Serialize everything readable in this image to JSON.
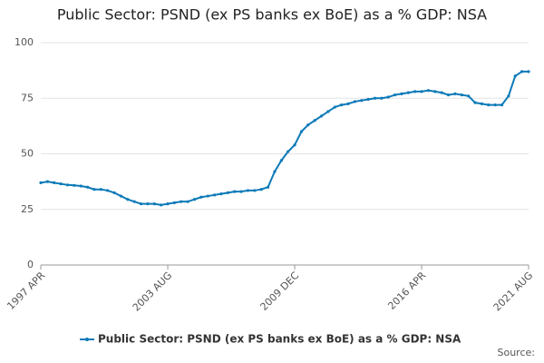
{
  "chart_data": {
    "type": "line",
    "title": "Public Sector: PSND (ex PS banks ex BoE) as a % GDP: NSA",
    "categories": [
      "1997 APR",
      null,
      null,
      null,
      null,
      null,
      null,
      null,
      null,
      null,
      null,
      null,
      null,
      null,
      null,
      null,
      null,
      null,
      null,
      "2003 AUG",
      null,
      null,
      null,
      null,
      null,
      null,
      null,
      null,
      null,
      null,
      null,
      null,
      null,
      null,
      null,
      null,
      null,
      null,
      "2009 DEC",
      null,
      null,
      null,
      null,
      null,
      null,
      null,
      null,
      null,
      null,
      null,
      null,
      null,
      null,
      null,
      null,
      null,
      null,
      "2016 APR",
      null,
      null,
      null,
      null,
      null,
      null,
      null,
      null,
      null,
      null,
      null,
      null,
      null,
      null,
      null,
      "2021 AUG"
    ],
    "series": [
      {
        "name": "Public Sector: PSND (ex PS banks ex BoE) as a % GDP: NSA",
        "color": "#0d7ab8",
        "values": [
          37,
          37.5,
          37,
          36.5,
          36,
          35.8,
          35.5,
          35,
          34,
          34,
          33.5,
          32.5,
          31,
          29.5,
          28.5,
          27.5,
          27.5,
          27.5,
          27,
          27.5,
          28,
          28.5,
          28.5,
          29.5,
          30.5,
          31,
          31.5,
          32,
          32.5,
          33,
          33,
          33.5,
          33.5,
          34,
          35,
          42,
          47,
          51,
          54,
          60,
          63,
          65,
          67,
          69,
          71,
          72,
          72.5,
          73.5,
          74,
          74.5,
          75,
          75,
          75.5,
          76.5,
          77,
          77.5,
          78,
          78,
          78.5,
          78,
          77.5,
          76.5,
          77,
          76.5,
          76,
          73,
          72.5,
          72,
          72,
          72,
          76,
          85,
          87,
          87
        ]
      }
    ],
    "ylim": [
      0,
      100
    ],
    "yticks": [
      0,
      25,
      50,
      75,
      100
    ],
    "grid": true,
    "legend": "bottom",
    "source": "Source:"
  }
}
